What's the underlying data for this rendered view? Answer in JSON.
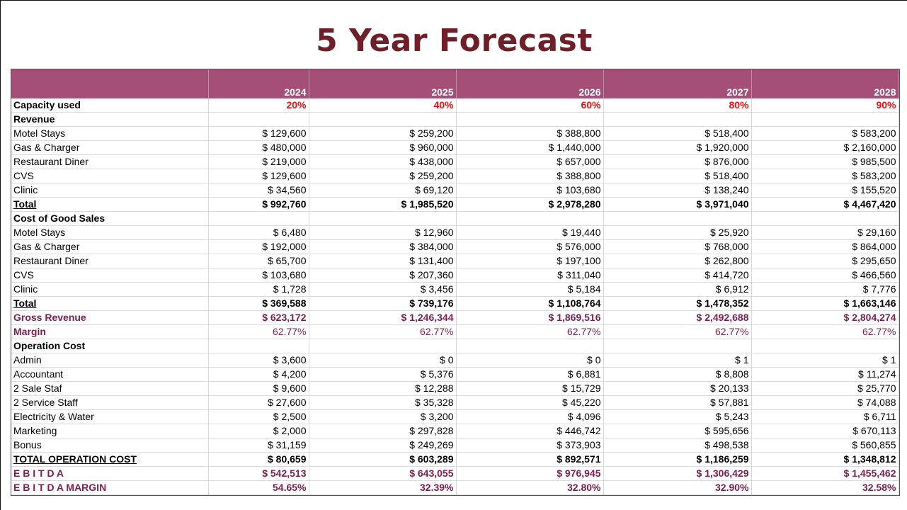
{
  "title": "5 Year Forecast",
  "years": [
    "2024",
    "2025",
    "2026",
    "2027",
    "2028"
  ],
  "rows": [
    {
      "key": "capacity",
      "label": "Capacity used",
      "values": [
        "20%",
        "40%",
        "60%",
        "80%",
        "90%"
      ],
      "style": "capacity"
    },
    {
      "key": "revenue-header",
      "label": "Revenue",
      "values": [
        "",
        "",
        "",
        "",
        ""
      ],
      "style": "section"
    },
    {
      "key": "rev-motel",
      "label": "Motel Stays",
      "values": [
        "$ 129,600",
        "$ 259,200",
        "$ 388,800",
        "$ 518,400",
        "$ 583,200"
      ],
      "style": "normal"
    },
    {
      "key": "rev-gas",
      "label": "Gas & Charger",
      "values": [
        "$ 480,000",
        "$ 960,000",
        "$ 1,440,000",
        "$ 1,920,000",
        "$ 2,160,000"
      ],
      "style": "normal"
    },
    {
      "key": "rev-restaurant",
      "label": "Restaurant Diner",
      "values": [
        "$ 219,000",
        "$ 438,000",
        "$ 657,000",
        "$ 876,000",
        "$ 985,500"
      ],
      "style": "normal"
    },
    {
      "key": "rev-cvs",
      "label": "CVS",
      "values": [
        "$ 129,600",
        "$ 259,200",
        "$ 388,800",
        "$ 518,400",
        "$ 583,200"
      ],
      "style": "normal"
    },
    {
      "key": "rev-clinic",
      "label": "Clinic",
      "values": [
        "$ 34,560",
        "$ 69,120",
        "$ 103,680",
        "$ 138,240",
        "$ 155,520"
      ],
      "style": "normal"
    },
    {
      "key": "rev-total",
      "label": "Total",
      "values": [
        "$ 992,760",
        "$ 1,985,520",
        "$ 2,978,280",
        "$ 3,971,040",
        "$ 4,467,420"
      ],
      "style": "total"
    },
    {
      "key": "cogs-header",
      "label": "Cost of Good Sales",
      "values": [
        "",
        "",
        "",
        "",
        ""
      ],
      "style": "section"
    },
    {
      "key": "cogs-motel",
      "label": "Motel Stays",
      "values": [
        "$ 6,480",
        "$ 12,960",
        "$ 19,440",
        "$ 25,920",
        "$ 29,160"
      ],
      "style": "normal"
    },
    {
      "key": "cogs-gas",
      "label": "Gas & Charger",
      "values": [
        "$ 192,000",
        "$ 384,000",
        "$ 576,000",
        "$ 768,000",
        "$ 864,000"
      ],
      "style": "normal"
    },
    {
      "key": "cogs-restaurant",
      "label": "Restaurant Diner",
      "values": [
        "$ 65,700",
        "$ 131,400",
        "$ 197,100",
        "$ 262,800",
        "$ 295,650"
      ],
      "style": "normal"
    },
    {
      "key": "cogs-cvs",
      "label": "CVS",
      "values": [
        "$ 103,680",
        "$ 207,360",
        "$ 311,040",
        "$ 414,720",
        "$ 466,560"
      ],
      "style": "normal"
    },
    {
      "key": "cogs-clinic",
      "label": "Clinic",
      "values": [
        "$ 1,728",
        "$ 3,456",
        "$ 5,184",
        "$ 6,912",
        "$ 7,776"
      ],
      "style": "normal"
    },
    {
      "key": "cogs-total",
      "label": "Total",
      "values": [
        "$ 369,588",
        "$ 739,176",
        "$ 1,108,764",
        "$ 1,478,352",
        "$ 1,663,146"
      ],
      "style": "total"
    },
    {
      "key": "gross-revenue",
      "label": "Gross Revenue",
      "values": [
        "$ 623,172",
        "$ 1,246,344",
        "$ 1,869,516",
        "$ 2,492,688",
        "$ 2,804,274"
      ],
      "style": "plum-bold"
    },
    {
      "key": "margin",
      "label": "Margin",
      "values": [
        "62.77%",
        "62.77%",
        "62.77%",
        "62.77%",
        "62.77%"
      ],
      "style": "plum-margin"
    },
    {
      "key": "opcost-header",
      "label": "Operation Cost",
      "values": [
        "",
        "",
        "",
        "",
        ""
      ],
      "style": "section"
    },
    {
      "key": "op-admin",
      "label": "Admin",
      "values": [
        "$ 3,600",
        "$ 0",
        "$ 0",
        "$ 1",
        "$ 1"
      ],
      "style": "normal"
    },
    {
      "key": "op-accountant",
      "label": "Accountant",
      "values": [
        "$ 4,200",
        "$ 5,376",
        "$ 6,881",
        "$ 8,808",
        "$ 11,274"
      ],
      "style": "normal"
    },
    {
      "key": "op-sale-staf",
      "label": "2 Sale Staf",
      "values": [
        "$ 9,600",
        "$ 12,288",
        "$ 15,729",
        "$ 20,133",
        "$ 25,770"
      ],
      "style": "normal"
    },
    {
      "key": "op-service-staff",
      "label": "2 Service Staff",
      "values": [
        "$ 27,600",
        "$ 35,328",
        "$ 45,220",
        "$ 57,881",
        "$ 74,088"
      ],
      "style": "normal"
    },
    {
      "key": "op-electricity",
      "label": "Electricity & Water",
      "values": [
        "$ 2,500",
        "$ 3,200",
        "$ 4,096",
        "$ 5,243",
        "$ 6,711"
      ],
      "style": "normal"
    },
    {
      "key": "op-marketing",
      "label": "Marketing",
      "values": [
        "$ 2,000",
        "$ 297,828",
        "$ 446,742",
        "$ 595,656",
        "$ 670,113"
      ],
      "style": "normal"
    },
    {
      "key": "op-bonus",
      "label": "Bonus",
      "values": [
        "$ 31,159",
        "$ 249,269",
        "$ 373,903",
        "$ 498,538",
        "$ 560,855"
      ],
      "style": "normal"
    },
    {
      "key": "op-total",
      "label": "TOTAL OPERATION COST",
      "values": [
        "$ 80,659",
        "$ 603,289",
        "$ 892,571",
        "$ 1,186,259",
        "$ 1,348,812"
      ],
      "style": "total"
    },
    {
      "key": "ebitda",
      "label": "E B I T D A",
      "values": [
        "$ 542,513",
        "$ 643,055",
        "$ 976,945",
        "$ 1,306,429",
        "$ 1,455,462"
      ],
      "style": "ebitda"
    },
    {
      "key": "ebitda-margin",
      "label": "E B I T D A MARGIN",
      "values": [
        "54.65%",
        "32.39%",
        "32.80%",
        "32.90%",
        "32.58%"
      ],
      "style": "ebitda-margin"
    }
  ],
  "colors": {
    "title": "#6e1f27",
    "header_fill": "#a54e78",
    "capacity": "#ee1111",
    "plum": "#7a1f4f"
  }
}
